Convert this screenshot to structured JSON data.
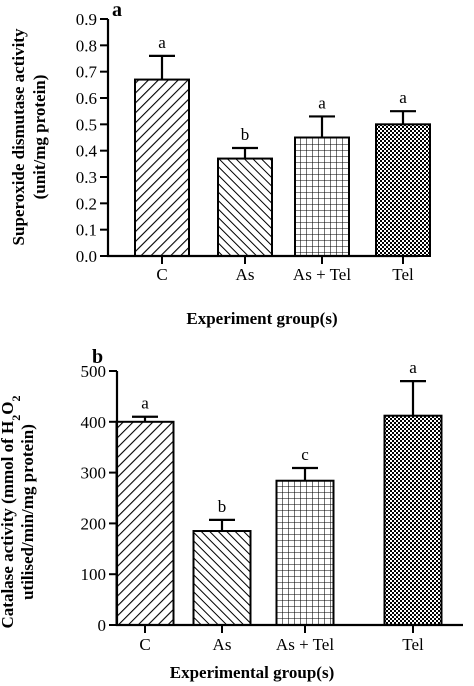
{
  "chart_data": [
    {
      "type": "bar",
      "panel_label": "a",
      "categories": [
        "C",
        "As",
        "As + Tel",
        "Tel"
      ],
      "values": [
        0.67,
        0.37,
        0.45,
        0.5
      ],
      "errors": [
        0.09,
        0.04,
        0.08,
        0.05
      ],
      "significance": [
        "a",
        "b",
        "a",
        "a"
      ],
      "patterns": [
        "diag-right",
        "diag-left",
        "grid",
        "checker"
      ],
      "ylabel_lines": [
        "Superoxide dismutase activity",
        "(unit/mg protein)"
      ],
      "xlabel": "Experiment group(s)",
      "ylim": [
        0,
        0.9
      ],
      "yticks": [
        "0.0",
        "0.1",
        "0.2",
        "0.3",
        "0.4",
        "0.5",
        "0.6",
        "0.7",
        "0.8",
        "0.9"
      ],
      "grid": false
    },
    {
      "type": "bar",
      "panel_label": "b",
      "categories": [
        "C",
        "As",
        "As + Tel",
        "Tel"
      ],
      "values": [
        400,
        185,
        284,
        412
      ],
      "errors": [
        10,
        22,
        25,
        68
      ],
      "significance": [
        "a",
        "b",
        "c",
        "a"
      ],
      "patterns": [
        "diag-right",
        "diag-left",
        "grid",
        "checker"
      ],
      "ylabel_lines": [
        "Catalase activity (mmol of H",
        "2",
        "O",
        "2",
        "utilised/min/mg protein)"
      ],
      "xlabel": "Experimental group(s)",
      "ylim": [
        0,
        500
      ],
      "yticks": [
        "0",
        "100",
        "200",
        "300",
        "400",
        "500"
      ],
      "grid": false
    }
  ]
}
